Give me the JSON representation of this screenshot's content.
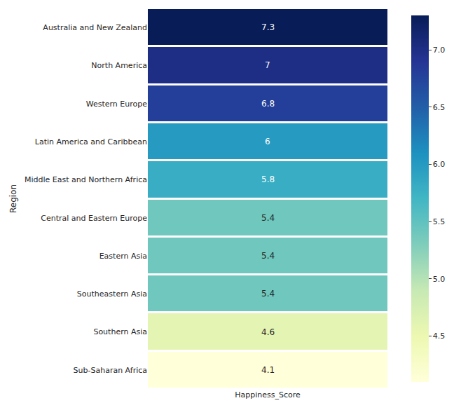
{
  "chart_data": {
    "type": "heatmap",
    "ylabel": "Region",
    "columns": [
      "Happiness_Score"
    ],
    "categories": [
      "Australia and New Zealand",
      "North America",
      "Western Europe",
      "Latin America and Caribbean",
      "Middle East and Northern Africa",
      "Central and Eastern Europe",
      "Eastern Asia",
      "Southeastern Asia",
      "Southern Asia",
      "Sub-Saharan Africa"
    ],
    "values": [
      7.3,
      7,
      6.8,
      6,
      5.8,
      5.4,
      5.4,
      5.4,
      4.6,
      4.1
    ],
    "data_labels": true,
    "colorbar_range": [
      4.1,
      7.3
    ],
    "colorbar_ticks": [
      4.5,
      {
        "value": 5,
        "label": "5.0"
      },
      5.5,
      {
        "value": 6,
        "label": "6.0"
      },
      6.5,
      {
        "value": 7,
        "label": "7.0"
      }
    ]
  }
}
